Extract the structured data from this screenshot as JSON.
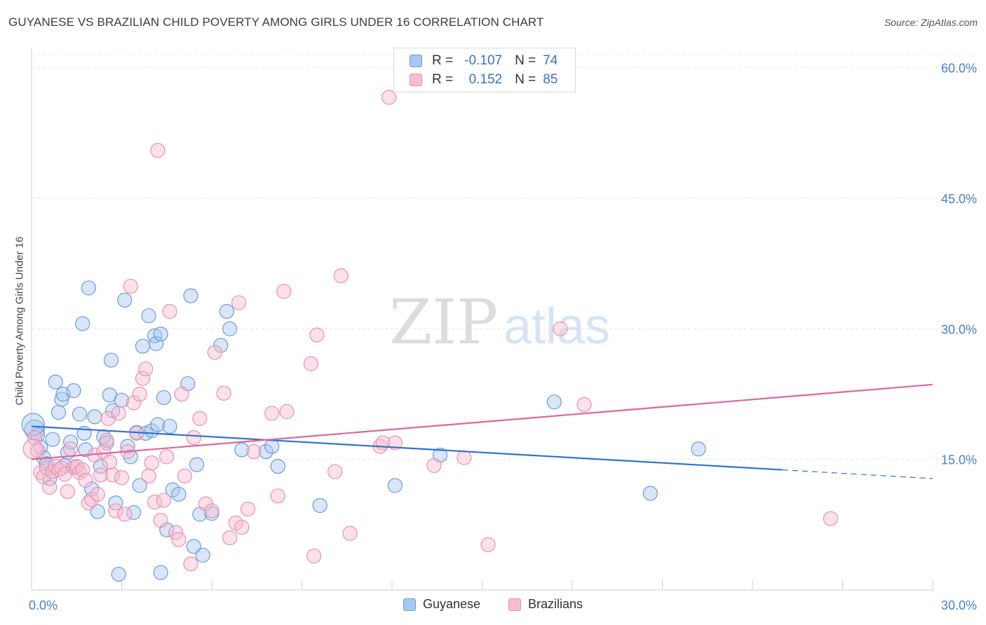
{
  "title": "GUYANESE VS BRAZILIAN CHILD POVERTY AMONG GIRLS UNDER 16 CORRELATION CHART",
  "source": "Source: ZipAtlas.com",
  "watermark": {
    "zip": "ZIP",
    "atlas": "atlas"
  },
  "stats": [
    {
      "r_label": "R =",
      "r_value": "-0.107",
      "n_label": "N =",
      "n_value": "74",
      "color": "#a8c8f0",
      "border": "#6a9bd8"
    },
    {
      "r_label": "R =",
      "r_value": "0.152",
      "n_label": "N =",
      "n_value": "85",
      "color": "#f8bcd0",
      "border": "#e890b0"
    }
  ],
  "legend": [
    {
      "label": "Guyanese",
      "color": "#a8c8f0",
      "border": "#6a9bd8"
    },
    {
      "label": "Brazilians",
      "color": "#f8bcd0",
      "border": "#e890b0"
    }
  ],
  "chart_data": {
    "type": "scatter",
    "title": "GUYANESE VS BRAZILIAN CHILD POVERTY AMONG GIRLS UNDER 16 CORRELATION CHART",
    "xlabel": "",
    "ylabel": "Child Poverty Among Girls Under 16",
    "xlim": [
      0,
      30
    ],
    "ylim": [
      0,
      61.5
    ],
    "x_tick_labels": [
      "0.0%",
      "30.0%"
    ],
    "y_ticks": [
      15,
      30,
      45,
      60
    ],
    "y_tick_labels": [
      "15.0%",
      "30.0%",
      "45.0%",
      "60.0%"
    ],
    "grid": true,
    "legend_position": "bottom-center",
    "series": [
      {
        "name": "Guyanese",
        "color": "#6a9bd8",
        "fill": "#a8c8f0",
        "trend_color": "#2f72d0",
        "trend": {
          "x0": 0,
          "y0": 18.8,
          "x1": 25,
          "y1": 13.8,
          "dash_to_x": 30,
          "dash_to_y": 12.8
        },
        "points": [
          [
            0.1,
            18.4
          ],
          [
            0.2,
            17.8
          ],
          [
            0.3,
            16.4
          ],
          [
            0.4,
            15.2
          ],
          [
            0.5,
            14.5
          ],
          [
            0.6,
            12.8
          ],
          [
            0.7,
            17.3
          ],
          [
            0.8,
            23.9
          ],
          [
            0.9,
            20.4
          ],
          [
            1.0,
            21.9
          ],
          [
            1.05,
            22.5
          ],
          [
            1.1,
            14.3
          ],
          [
            1.2,
            15.8
          ],
          [
            1.3,
            17.0
          ],
          [
            1.4,
            22.9
          ],
          [
            1.5,
            14.2
          ],
          [
            1.6,
            20.2
          ],
          [
            1.7,
            30.6
          ],
          [
            1.75,
            18.0
          ],
          [
            1.8,
            16.1
          ],
          [
            1.9,
            34.7
          ],
          [
            2.0,
            11.6
          ],
          [
            2.1,
            19.9
          ],
          [
            2.2,
            9.0
          ],
          [
            2.3,
            14.2
          ],
          [
            2.4,
            17.6
          ],
          [
            2.5,
            16.9
          ],
          [
            2.6,
            22.4
          ],
          [
            2.65,
            26.4
          ],
          [
            2.7,
            20.6
          ],
          [
            2.8,
            10.0
          ],
          [
            3.0,
            21.8
          ],
          [
            3.1,
            33.3
          ],
          [
            3.2,
            16.5
          ],
          [
            3.3,
            15.3
          ],
          [
            3.4,
            8.9
          ],
          [
            3.5,
            18.1
          ],
          [
            3.6,
            12.0
          ],
          [
            3.7,
            28.0
          ],
          [
            3.8,
            18.0
          ],
          [
            3.9,
            31.5
          ],
          [
            4.0,
            18.3
          ],
          [
            4.1,
            29.2
          ],
          [
            4.15,
            28.3
          ],
          [
            4.2,
            19.0
          ],
          [
            4.3,
            29.4
          ],
          [
            4.4,
            22.1
          ],
          [
            4.5,
            6.9
          ],
          [
            4.6,
            18.8
          ],
          [
            4.7,
            11.5
          ],
          [
            4.9,
            11.0
          ],
          [
            5.2,
            23.7
          ],
          [
            5.3,
            33.8
          ],
          [
            5.4,
            5.0
          ],
          [
            5.5,
            14.4
          ],
          [
            5.6,
            8.7
          ],
          [
            5.7,
            4.0
          ],
          [
            6.0,
            8.8
          ],
          [
            6.3,
            28.1
          ],
          [
            6.5,
            32.0
          ],
          [
            6.6,
            30.0
          ],
          [
            7.0,
            16.1
          ],
          [
            7.8,
            15.9
          ],
          [
            8.0,
            16.5
          ],
          [
            8.2,
            14.2
          ],
          [
            9.6,
            9.7
          ],
          [
            12.1,
            12.0
          ],
          [
            13.6,
            15.5
          ],
          [
            17.4,
            21.6
          ],
          [
            20.6,
            11.1
          ],
          [
            22.2,
            16.2
          ],
          [
            2.9,
            1.8
          ],
          [
            4.3,
            2.0
          ],
          [
            0.05,
            19.0
          ]
        ],
        "sizes": [
          14,
          10,
          10,
          10,
          10,
          10,
          10,
          10,
          10,
          10,
          10,
          10,
          10,
          10,
          10,
          10,
          10,
          10,
          10,
          10,
          10,
          10,
          10,
          10,
          10,
          10,
          10,
          10,
          10,
          10,
          10,
          10,
          10,
          10,
          10,
          10,
          10,
          10,
          10,
          10,
          10,
          10,
          10,
          10,
          10,
          10,
          10,
          10,
          10,
          10,
          10,
          10,
          10,
          10,
          10,
          10,
          10,
          10,
          10,
          10,
          10,
          10,
          10,
          10,
          10,
          10,
          10,
          10,
          10,
          10,
          10,
          10,
          10,
          16
        ]
      },
      {
        "name": "Brazilians",
        "color": "#e890b0",
        "fill": "#f8bcd0",
        "trend_color": "#e0669a",
        "trend": {
          "x0": 0,
          "y0": 15.0,
          "x1": 30,
          "y1": 23.6
        },
        "points": [
          [
            0.1,
            17.5
          ],
          [
            0.2,
            16.0
          ],
          [
            0.3,
            13.5
          ],
          [
            0.4,
            13.0
          ],
          [
            0.5,
            14.0
          ],
          [
            0.6,
            11.8
          ],
          [
            0.7,
            13.6
          ],
          [
            0.8,
            14.2
          ],
          [
            0.9,
            13.8
          ],
          [
            1.0,
            14.0
          ],
          [
            1.1,
            13.3
          ],
          [
            1.2,
            11.3
          ],
          [
            1.3,
            16.2
          ],
          [
            1.4,
            14.1
          ],
          [
            1.5,
            14.2
          ],
          [
            1.6,
            13.5
          ],
          [
            1.7,
            13.8
          ],
          [
            1.8,
            12.6
          ],
          [
            1.9,
            10.0
          ],
          [
            2.0,
            10.4
          ],
          [
            2.1,
            15.5
          ],
          [
            2.2,
            11.0
          ],
          [
            2.3,
            13.2
          ],
          [
            2.4,
            15.9
          ],
          [
            2.5,
            17.2
          ],
          [
            2.55,
            19.7
          ],
          [
            2.6,
            14.7
          ],
          [
            2.7,
            13.2
          ],
          [
            2.8,
            9.1
          ],
          [
            2.9,
            20.3
          ],
          [
            3.0,
            12.9
          ],
          [
            3.1,
            8.7
          ],
          [
            3.2,
            15.9
          ],
          [
            3.3,
            34.9
          ],
          [
            3.4,
            21.5
          ],
          [
            3.5,
            18.0
          ],
          [
            3.6,
            22.5
          ],
          [
            3.7,
            24.3
          ],
          [
            3.8,
            25.4
          ],
          [
            3.9,
            13.1
          ],
          [
            4.0,
            14.6
          ],
          [
            4.1,
            10.1
          ],
          [
            4.2,
            50.5
          ],
          [
            4.3,
            8.0
          ],
          [
            4.4,
            10.3
          ],
          [
            4.5,
            15.3
          ],
          [
            4.6,
            32.0
          ],
          [
            4.8,
            6.6
          ],
          [
            4.9,
            5.8
          ],
          [
            5.0,
            22.5
          ],
          [
            5.1,
            13.1
          ],
          [
            5.3,
            3.0
          ],
          [
            5.4,
            17.5
          ],
          [
            5.6,
            19.7
          ],
          [
            5.8,
            9.9
          ],
          [
            6.0,
            9.1
          ],
          [
            6.1,
            27.3
          ],
          [
            6.4,
            22.6
          ],
          [
            6.6,
            6.0
          ],
          [
            6.8,
            7.7
          ],
          [
            6.9,
            33.0
          ],
          [
            7.0,
            7.2
          ],
          [
            7.2,
            9.3
          ],
          [
            7.4,
            15.9
          ],
          [
            8.0,
            20.3
          ],
          [
            8.2,
            10.8
          ],
          [
            8.4,
            34.3
          ],
          [
            8.5,
            20.5
          ],
          [
            9.4,
            3.9
          ],
          [
            9.5,
            29.3
          ],
          [
            9.3,
            26.0
          ],
          [
            10.1,
            13.6
          ],
          [
            10.3,
            36.1
          ],
          [
            10.6,
            6.5
          ],
          [
            11.6,
            16.5
          ],
          [
            11.7,
            16.9
          ],
          [
            11.9,
            56.6
          ],
          [
            12.1,
            16.9
          ],
          [
            13.4,
            14.3
          ],
          [
            14.4,
            15.2
          ],
          [
            15.2,
            5.2
          ],
          [
            17.6,
            30.0
          ],
          [
            18.4,
            21.3
          ],
          [
            26.6,
            8.2
          ],
          [
            0.05,
            16.2
          ]
        ],
        "sizes": [
          10,
          10,
          10,
          10,
          10,
          10,
          10,
          10,
          10,
          10,
          10,
          10,
          10,
          10,
          10,
          10,
          10,
          10,
          10,
          10,
          10,
          10,
          10,
          10,
          10,
          10,
          10,
          10,
          10,
          10,
          10,
          10,
          10,
          10,
          10,
          10,
          10,
          10,
          10,
          10,
          10,
          10,
          10,
          10,
          10,
          10,
          10,
          10,
          10,
          10,
          10,
          10,
          10,
          10,
          10,
          10,
          10,
          10,
          10,
          10,
          10,
          10,
          10,
          10,
          10,
          10,
          10,
          10,
          10,
          10,
          10,
          10,
          10,
          10,
          10,
          10,
          10,
          10,
          10,
          10,
          10,
          10,
          10,
          10,
          14
        ]
      }
    ]
  }
}
